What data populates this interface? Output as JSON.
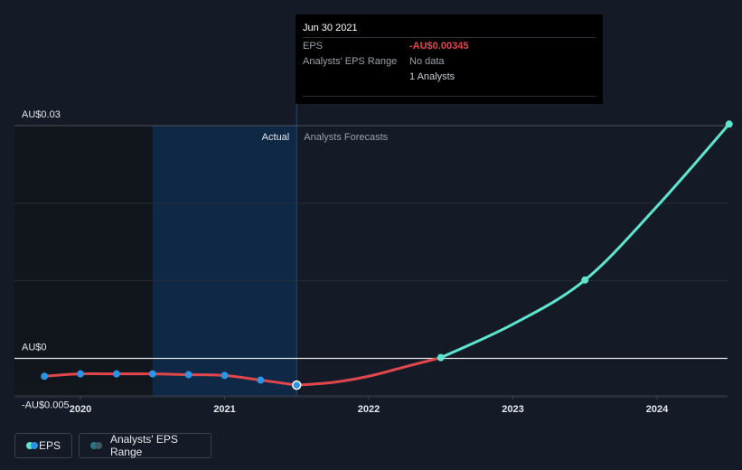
{
  "tooltip": {
    "date": "Jun 30 2021",
    "rows": [
      {
        "label": "EPS",
        "value": "-AU$0.00345"
      },
      {
        "label": "Analysts' EPS Range",
        "value": "No data"
      },
      {
        "label": "",
        "value": "1 Analysts"
      }
    ]
  },
  "legend": {
    "eps_label": "EPS",
    "range_label": "Analysts' EPS Range"
  },
  "colors": {
    "background": "#151b26",
    "actual_shade": "#0f2846",
    "past_shade": "#11151c",
    "eps_negative": "#e0474c",
    "eps_forecast": "#5fe4cf",
    "eps_points": "#2b95e5",
    "range_dot": "#2d7784"
  },
  "chart_data": {
    "type": "line",
    "section_labels": {
      "actual": "Actual",
      "forecast": "Analysts Forecasts"
    },
    "y_tick_labels": [
      {
        "value": 0.03,
        "label": "AU$0.03"
      },
      {
        "value": 0,
        "label": "AU$0"
      },
      {
        "value": -0.005,
        "label": "-AU$0.005"
      }
    ],
    "x_tick_labels": [
      {
        "value": 2020.0,
        "label": "2020"
      },
      {
        "value": 2021.0,
        "label": "2021"
      },
      {
        "value": 2022.0,
        "label": "2022"
      },
      {
        "value": 2023.0,
        "label": "2023"
      },
      {
        "value": 2024.0,
        "label": "2024"
      }
    ],
    "xlim": [
      2019.55,
      2024.5
    ],
    "ylim": [
      -0.005,
      0.03
    ],
    "actual_end": 2021.5,
    "actual_shade_start": 2020.5,
    "series": [
      {
        "name": "EPS",
        "segment": "actual",
        "points": [
          {
            "x": 2019.75,
            "y": -0.0023
          },
          {
            "x": 2020.0,
            "y": -0.002
          },
          {
            "x": 2020.25,
            "y": -0.002
          },
          {
            "x": 2020.5,
            "y": -0.002
          },
          {
            "x": 2020.75,
            "y": -0.0021
          },
          {
            "x": 2021.0,
            "y": -0.0022
          },
          {
            "x": 2021.25,
            "y": -0.0028
          },
          {
            "x": 2021.5,
            "y": -0.00345
          }
        ]
      },
      {
        "name": "EPS",
        "segment": "forecast",
        "points": [
          {
            "x": 2021.5,
            "y": -0.00345
          },
          {
            "x": 2021.75,
            "y": -0.0031
          },
          {
            "x": 2022.0,
            "y": -0.0023
          },
          {
            "x": 2022.25,
            "y": -0.0011
          },
          {
            "x": 2022.5,
            "y": 0.0001
          },
          {
            "x": 2023.0,
            "y": 0.0044
          },
          {
            "x": 2023.5,
            "y": 0.0101
          },
          {
            "x": 2024.0,
            "y": 0.0196
          },
          {
            "x": 2024.5,
            "y": 0.0302
          }
        ],
        "markers": [
          2022.5,
          2023.5,
          2024.5
        ]
      }
    ]
  }
}
